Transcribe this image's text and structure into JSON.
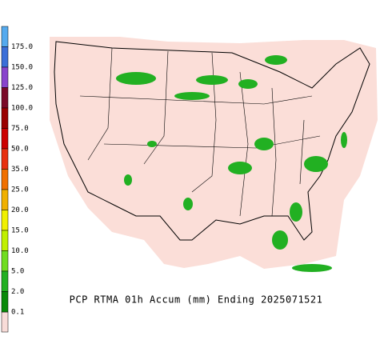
{
  "title": "PCP RTMA 01h Accum (mm) Ending 2025071521",
  "legend": [
    {
      "label": "175.0",
      "color": "#55aaee"
    },
    {
      "label": "150.0",
      "color": "#3b6fd8"
    },
    {
      "label": "125.0",
      "color": "#8844cc"
    },
    {
      "label": "100.0",
      "color": "#7a0a28"
    },
    {
      "label": "75.0",
      "color": "#9a0000"
    },
    {
      "label": "50.0",
      "color": "#cc0000"
    },
    {
      "label": "35.0",
      "color": "#e83010"
    },
    {
      "label": "25.0",
      "color": "#f07000"
    },
    {
      "label": "20.0",
      "color": "#f0b000"
    },
    {
      "label": "15.0",
      "color": "#f0f000"
    },
    {
      "label": "10.0",
      "color": "#c0f000"
    },
    {
      "label": "5.0",
      "color": "#70dd20"
    },
    {
      "label": "2.0",
      "color": "#22b022"
    },
    {
      "label": "0.1",
      "color": "#0a8a0a"
    }
  ]
}
